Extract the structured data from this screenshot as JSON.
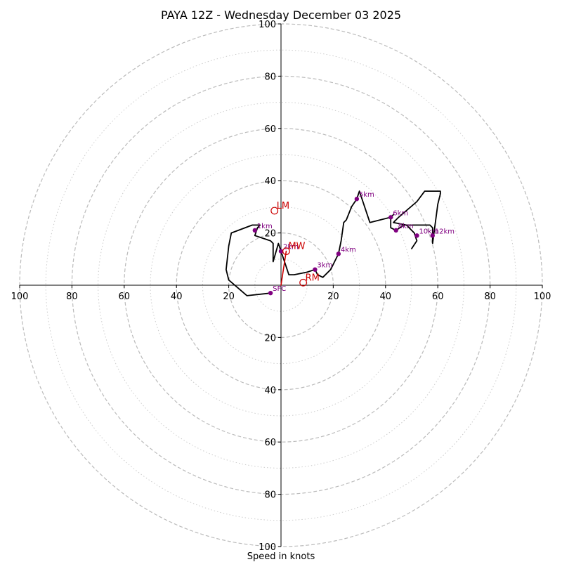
{
  "chart_data": {
    "type": "line",
    "title": "PAYA 12Z - Wednesday December 03 2025",
    "xlabel": "Speed in knots",
    "ylabel": "",
    "xlim": [
      -100,
      100
    ],
    "ylim": [
      -100,
      100
    ],
    "ring_major": [
      20,
      40,
      60,
      80,
      100
    ],
    "ring_minor": [
      10,
      30,
      50,
      70,
      90
    ],
    "ticks": {
      "x": [
        {
          "value": -100,
          "label": "100"
        },
        {
          "value": -80,
          "label": "80"
        },
        {
          "value": -60,
          "label": "60"
        },
        {
          "value": -40,
          "label": "40"
        },
        {
          "value": -20,
          "label": "20"
        },
        {
          "value": 20,
          "label": "20"
        },
        {
          "value": 40,
          "label": "40"
        },
        {
          "value": 60,
          "label": "60"
        },
        {
          "value": 80,
          "label": "80"
        },
        {
          "value": 100,
          "label": "100"
        }
      ],
      "y": [
        {
          "value": 100,
          "label": "100"
        },
        {
          "value": 80,
          "label": "80"
        },
        {
          "value": 60,
          "label": "60"
        },
        {
          "value": 40,
          "label": "40"
        },
        {
          "value": 20,
          "label": "20"
        },
        {
          "value": -20,
          "label": "20"
        },
        {
          "value": -40,
          "label": "40"
        },
        {
          "value": -60,
          "label": "60"
        },
        {
          "value": -80,
          "label": "80"
        },
        {
          "value": -100,
          "label": "100"
        }
      ]
    },
    "series": [
      {
        "kind": "hodograph",
        "color": "#000000",
        "x": [
          -4,
          -13,
          -20,
          -21,
          -20,
          -19,
          -11,
          -8,
          -9,
          -10,
          -4,
          -3,
          -3,
          -1,
          3,
          5,
          10,
          13,
          14,
          16,
          19,
          22,
          23,
          24,
          25,
          27,
          29,
          30,
          34,
          42,
          43,
          42,
          42,
          44,
          47,
          50,
          57,
          58,
          58,
          60,
          61,
          61,
          60,
          55,
          52,
          45,
          43,
          48,
          51,
          52,
          50
        ],
        "y": [
          -3,
          -4,
          2,
          6,
          15,
          20,
          23,
          23,
          22,
          19,
          17,
          16,
          9,
          16,
          4,
          4,
          5,
          6,
          4,
          3,
          6,
          12,
          17,
          24,
          25,
          30,
          33,
          36,
          24,
          26,
          27,
          26,
          22,
          21,
          23,
          23,
          23,
          22,
          16,
          31,
          35,
          36,
          36,
          36,
          32,
          26,
          24,
          23,
          20,
          17,
          14
        ]
      },
      {
        "kind": "mean-wind-vector",
        "color": "#cc0000",
        "x": [
          0,
          2
        ],
        "y": [
          0,
          13
        ]
      }
    ],
    "height_markers": [
      {
        "label": "SFC",
        "x": -4,
        "y": -3
      },
      {
        "label": "1km",
        "x": -10,
        "y": 21
      },
      {
        "label": "2km",
        "x": 0,
        "y": 13
      },
      {
        "label": "3km",
        "x": 13,
        "y": 6
      },
      {
        "label": "4km",
        "x": 22,
        "y": 12
      },
      {
        "label": "5km",
        "x": 29,
        "y": 33
      },
      {
        "label": "6km",
        "x": 42,
        "y": 26
      },
      {
        "label": "8km",
        "x": 44,
        "y": 21
      },
      {
        "label": "10km",
        "x": 52,
        "y": 19
      },
      {
        "label": "12km",
        "x": 58,
        "y": 19
      }
    ],
    "storm_motions": [
      {
        "label": "LM",
        "x": -2.5,
        "y": 28.5
      },
      {
        "label": "MW",
        "x": 2,
        "y": 13
      },
      {
        "label": "RM",
        "x": 8.5,
        "y": 1
      }
    ],
    "colors": {
      "hodograph": "#000000",
      "markers": "#800080",
      "storm_motion": "#cc0000",
      "grid": "#bbbbbb",
      "axes": "#000000"
    },
    "grid": true
  }
}
